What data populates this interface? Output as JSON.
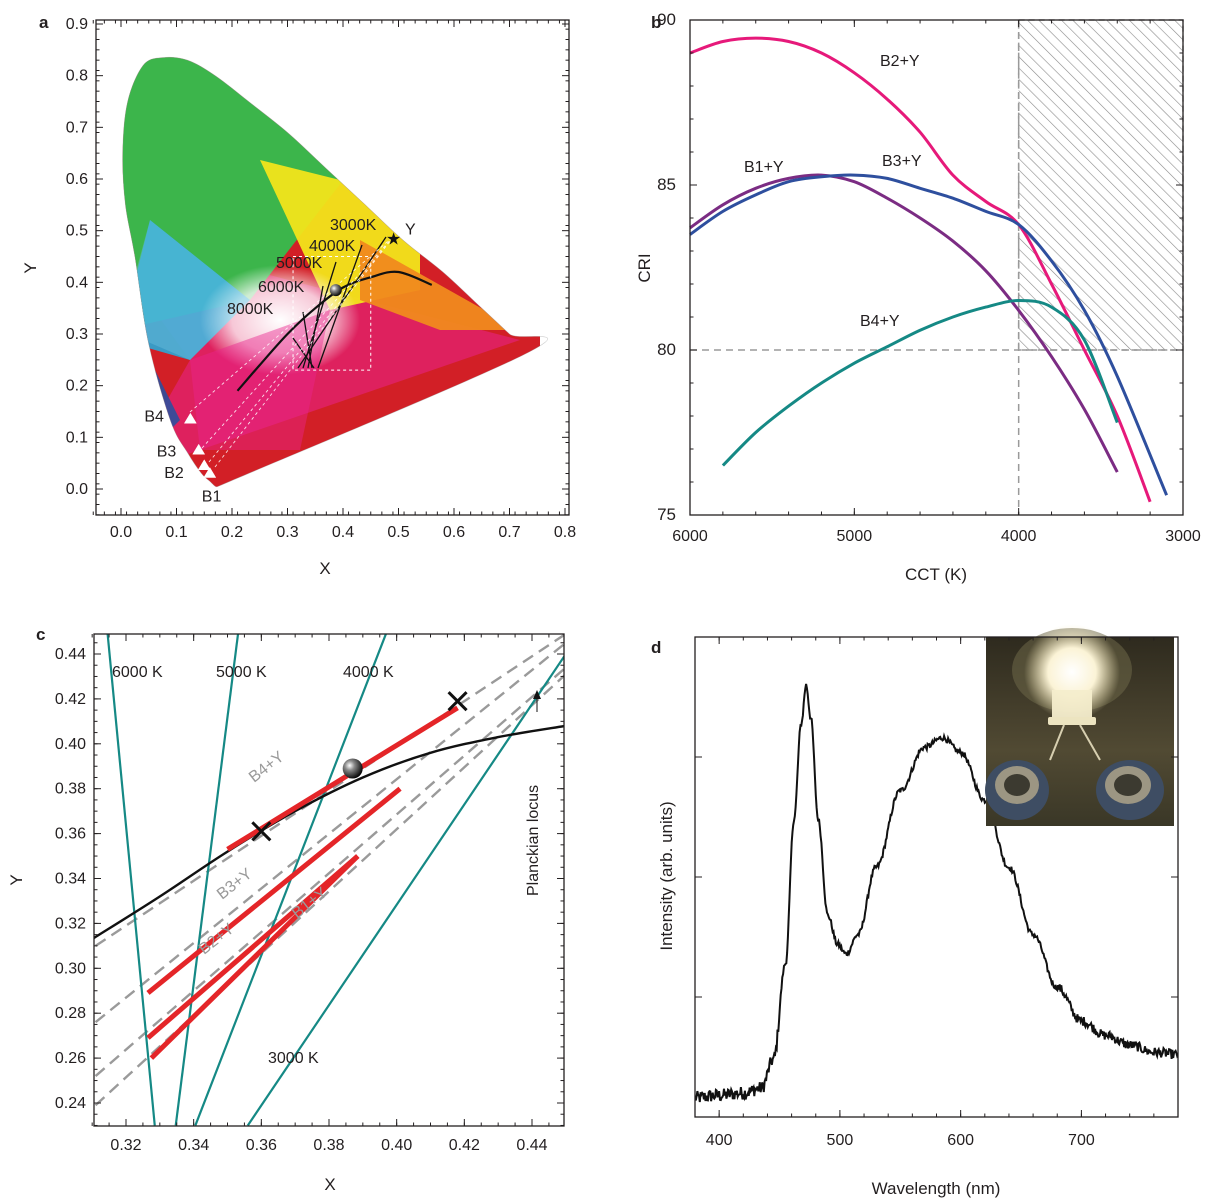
{
  "chart_data": [
    {
      "panel": "a",
      "type": "scatter",
      "xlabel": "X",
      "ylabel": "Y",
      "xlim": [
        -0.05,
        0.8
      ],
      "ylim": [
        -0.05,
        0.9
      ],
      "xticks": [
        "0.0",
        "0.1",
        "0.2",
        "0.3",
        "0.4",
        "0.5",
        "0.6",
        "0.7",
        "0.8"
      ],
      "yticks": [
        "0.0",
        "0.1",
        "0.2",
        "0.3",
        "0.4",
        "0.5",
        "0.6",
        "0.7",
        "0.8",
        "0.9"
      ],
      "locus": [
        [
          0.175,
          0.005
        ],
        [
          0.17,
          0.005
        ],
        [
          0.16,
          0.015
        ],
        [
          0.145,
          0.03
        ],
        [
          0.12,
          0.07
        ],
        [
          0.09,
          0.13
        ],
        [
          0.05,
          0.28
        ],
        [
          0.025,
          0.45
        ],
        [
          0.008,
          0.55
        ],
        [
          0.003,
          0.65
        ],
        [
          0.012,
          0.75
        ],
        [
          0.04,
          0.82
        ],
        [
          0.075,
          0.835
        ],
        [
          0.12,
          0.83
        ],
        [
          0.17,
          0.8
        ],
        [
          0.23,
          0.75
        ],
        [
          0.3,
          0.69
        ],
        [
          0.37,
          0.62
        ],
        [
          0.44,
          0.55
        ],
        [
          0.51,
          0.48
        ],
        [
          0.58,
          0.42
        ],
        [
          0.645,
          0.355
        ],
        [
          0.7,
          0.3
        ],
        [
          0.735,
          0.265
        ],
        [
          0.175,
          0.005
        ]
      ],
      "planckian": [
        [
          0.21,
          0.19
        ],
        [
          0.25,
          0.24
        ],
        [
          0.3,
          0.3
        ],
        [
          0.35,
          0.35
        ],
        [
          0.4,
          0.39
        ],
        [
          0.45,
          0.41
        ],
        [
          0.5,
          0.42
        ],
        [
          0.56,
          0.395
        ]
      ],
      "cct_labels": [
        "3000K",
        "4000K",
        "5000K",
        "6000K",
        "8000K"
      ],
      "points": [
        {
          "label": "Y",
          "x": 0.49,
          "y": 0.485
        },
        {
          "label": "B4",
          "x": 0.125,
          "y": 0.135
        },
        {
          "label": "B3",
          "x": 0.14,
          "y": 0.075
        },
        {
          "label": "B2",
          "x": 0.15,
          "y": 0.045
        },
        {
          "label": "B1",
          "x": 0.16,
          "y": 0.03
        }
      ],
      "ball": {
        "x": 0.387,
        "y": 0.385
      },
      "box": {
        "x0": 0.31,
        "x1": 0.45,
        "y0": 0.23,
        "y1": 0.45
      }
    },
    {
      "panel": "b",
      "type": "line",
      "xlabel": "CCT (K)",
      "ylabel": "CRI",
      "xlim": [
        6000,
        3000
      ],
      "ylim": [
        75,
        90
      ],
      "xticks": [
        "6000",
        "5000",
        "4000",
        "3000"
      ],
      "yticks": [
        "75",
        "80",
        "85",
        "90"
      ],
      "threshold_cct": 4000,
      "threshold_cri": 80,
      "series": [
        {
          "name": "B2+Y",
          "color": "#e6197a",
          "x": [
            6000,
            5800,
            5600,
            5400,
            5200,
            5000,
            4800,
            4600,
            4400,
            4200,
            4000,
            3800,
            3600,
            3400,
            3200
          ],
          "values": [
            89.0,
            89.35,
            89.45,
            89.35,
            89.0,
            88.4,
            87.6,
            86.6,
            85.3,
            84.5,
            83.8,
            82.0,
            80.0,
            78.0,
            75.4
          ]
        },
        {
          "name": "B1+Y",
          "color": "#7b2c83",
          "x": [
            6000,
            5800,
            5600,
            5400,
            5200,
            5000,
            4800,
            4600,
            4400,
            4200,
            4000,
            3800,
            3600,
            3400
          ],
          "values": [
            83.7,
            84.4,
            84.9,
            85.2,
            85.3,
            85.1,
            84.6,
            84.0,
            83.3,
            82.4,
            81.2,
            79.8,
            78.2,
            76.3
          ]
        },
        {
          "name": "B3+Y",
          "color": "#2e4f9e",
          "x": [
            6000,
            5800,
            5600,
            5400,
            5200,
            5000,
            4800,
            4600,
            4400,
            4200,
            4000,
            3800,
            3600,
            3400,
            3100
          ],
          "values": [
            83.5,
            84.2,
            84.7,
            85.1,
            85.25,
            85.3,
            85.2,
            84.9,
            84.6,
            84.2,
            83.8,
            82.7,
            81.2,
            79.2,
            75.6
          ]
        },
        {
          "name": "B4+Y",
          "color": "#158985",
          "x": [
            5800,
            5600,
            5400,
            5200,
            5000,
            4800,
            4600,
            4400,
            4200,
            4000,
            3800,
            3600,
            3400
          ],
          "values": [
            76.5,
            77.5,
            78.3,
            79.0,
            79.6,
            80.1,
            80.6,
            81.0,
            81.3,
            81.5,
            81.3,
            80.3,
            77.8
          ]
        }
      ]
    },
    {
      "panel": "c",
      "type": "line",
      "xlabel": "X",
      "ylabel": "Y",
      "xlim": [
        0.31,
        0.45
      ],
      "ylim": [
        0.23,
        0.45
      ],
      "xticks": [
        "0.32",
        "0.34",
        "0.36",
        "0.38",
        "0.40",
        "0.42",
        "0.44"
      ],
      "yticks": [
        "0.24",
        "0.26",
        "0.28",
        "0.30",
        "0.32",
        "0.34",
        "0.36",
        "0.38",
        "0.40",
        "0.42",
        "0.44"
      ],
      "planckian": [
        [
          0.31,
          0.313
        ],
        [
          0.33,
          0.332
        ],
        [
          0.35,
          0.352
        ],
        [
          0.37,
          0.37
        ],
        [
          0.39,
          0.385
        ],
        [
          0.41,
          0.396
        ],
        [
          0.43,
          0.403
        ],
        [
          0.45,
          0.408
        ]
      ],
      "planckian_label": "Planckian locus",
      "isotherms": [
        {
          "label": "6000 K",
          "x1": 0.3145,
          "y1": 0.45,
          "x2": 0.3285,
          "y2": 0.23
        },
        {
          "label": "5000 K",
          "x1": 0.3532,
          "y1": 0.45,
          "x2": 0.3347,
          "y2": 0.23
        },
        {
          "label": "4000 K",
          "x1": 0.3971,
          "y1": 0.45,
          "x2": 0.3405,
          "y2": 0.23
        },
        {
          "label": "3000 K",
          "x1": 0.45,
          "y1": 0.44,
          "x2": 0.356,
          "y2": 0.23
        }
      ],
      "mix_lines": [
        {
          "name": "B4+Y",
          "x": [
            0.311,
            0.45
          ],
          "y": [
            0.31,
            0.449
          ]
        },
        {
          "name": "B3+Y",
          "x": [
            0.311,
            0.45
          ],
          "y": [
            0.276,
            0.445
          ]
        },
        {
          "name": "B2+Y",
          "x": [
            0.311,
            0.45
          ],
          "y": [
            0.252,
            0.434
          ]
        },
        {
          "name": "B1+Y",
          "x": [
            0.311,
            0.45
          ],
          "y": [
            0.239,
            0.431
          ]
        }
      ],
      "red_segments": [
        {
          "x": [
            0.35,
            0.418
          ],
          "y": [
            0.353,
            0.416
          ]
        },
        {
          "x": [
            0.3265,
            0.401
          ],
          "y": [
            0.289,
            0.38
          ]
        },
        {
          "x": [
            0.3265,
            0.3885
          ],
          "y": [
            0.269,
            0.35
          ]
        },
        {
          "x": [
            0.3275,
            0.3885
          ],
          "y": [
            0.26,
            0.35
          ]
        }
      ],
      "cross_points": [
        {
          "x": 0.36,
          "y": 0.361
        },
        {
          "x": 0.418,
          "y": 0.419
        }
      ],
      "ball": {
        "x": 0.387,
        "y": 0.389
      }
    },
    {
      "panel": "d",
      "type": "line",
      "xlabel": "Wavelength (nm)",
      "ylabel": "Intensity (arb. units)",
      "xlim": [
        380,
        780
      ],
      "ylim": [
        0,
        1
      ],
      "xticks": [
        "400",
        "500",
        "600",
        "700"
      ],
      "series": [
        {
          "name": "",
          "x": [
            380,
            400,
            420,
            435,
            445,
            455,
            462,
            468,
            472,
            476,
            482,
            490,
            498,
            505,
            515,
            530,
            550,
            570,
            585,
            600,
            620,
            640,
            660,
            680,
            700,
            720,
            740,
            760,
            780
          ],
          "values": [
            0.04,
            0.045,
            0.05,
            0.06,
            0.12,
            0.32,
            0.62,
            0.82,
            0.9,
            0.83,
            0.62,
            0.42,
            0.36,
            0.34,
            0.38,
            0.52,
            0.68,
            0.77,
            0.79,
            0.76,
            0.66,
            0.52,
            0.38,
            0.27,
            0.2,
            0.17,
            0.15,
            0.135,
            0.13
          ]
        }
      ],
      "inset": "LED photo"
    }
  ]
}
